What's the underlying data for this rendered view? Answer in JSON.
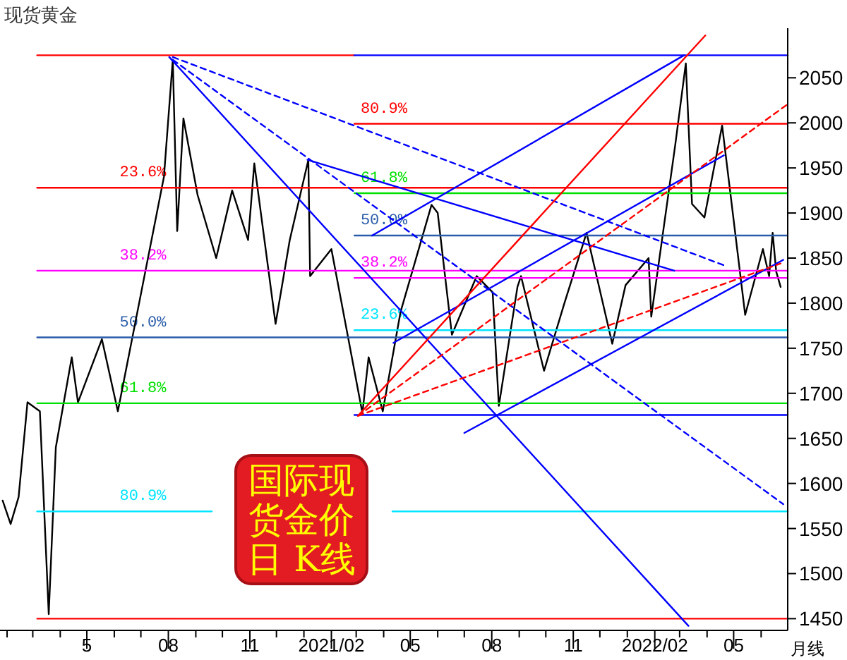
{
  "chart_data": {
    "type": "line",
    "title": "现货黄金",
    "xlim": [
      "2020-01-24",
      "2022-07-01"
    ],
    "ylim": [
      1437,
      2105
    ],
    "yticks": [
      1450,
      1500,
      1550,
      1600,
      1650,
      1700,
      1750,
      1800,
      1850,
      1900,
      1950,
      2000,
      2050
    ],
    "xticks": [
      {
        "value": "2020-02-01",
        "label": null
      },
      {
        "value": "2020-03-01",
        "label": null
      },
      {
        "value": "2020-04-01",
        "label": null
      },
      {
        "value": "2020-05-01",
        "label": "5"
      },
      {
        "value": "2020-06-01",
        "label": null
      },
      {
        "value": "2020-07-01",
        "label": null
      },
      {
        "value": "2020-08-01",
        "label": "08"
      },
      {
        "value": "2020-09-01",
        "label": null
      },
      {
        "value": "2020-10-01",
        "label": null
      },
      {
        "value": "2020-11-01",
        "label": "11"
      },
      {
        "value": "2020-12-01",
        "label": null
      },
      {
        "value": "2021-01-01",
        "label": null
      },
      {
        "value": "2021-02-01",
        "label": "2021/02"
      },
      {
        "value": "2021-03-01",
        "label": null
      },
      {
        "value": "2021-04-01",
        "label": null
      },
      {
        "value": "2021-05-01",
        "label": "05"
      },
      {
        "value": "2021-06-01",
        "label": null
      },
      {
        "value": "2021-07-01",
        "label": null
      },
      {
        "value": "2021-08-01",
        "label": "08"
      },
      {
        "value": "2021-09-01",
        "label": null
      },
      {
        "value": "2021-10-01",
        "label": null
      },
      {
        "value": "2021-11-01",
        "label": "11"
      },
      {
        "value": "2021-12-01",
        "label": null
      },
      {
        "value": "2022-01-01",
        "label": null
      },
      {
        "value": "2022-02-01",
        "label": "2022/02"
      },
      {
        "value": "2022-03-01",
        "label": null
      },
      {
        "value": "2022-04-01",
        "label": null
      },
      {
        "value": "2022-05-01",
        "label": "05"
      },
      {
        "value": "2022-06-01",
        "label": null
      }
    ],
    "series": [
      {
        "color": "#000000",
        "x": [
          "2020-01-27",
          "2020-02-05",
          "2020-02-14",
          "2020-02-24",
          "2020-03-09",
          "2020-03-19",
          "2020-03-27",
          "2020-04-14",
          "2020-04-21",
          "2020-05-18",
          "2020-06-05",
          "2020-06-24",
          "2020-07-27",
          "2020-08-06",
          "2020-08-11",
          "2020-08-18",
          "2020-09-03",
          "2020-09-24",
          "2020-10-12",
          "2020-10-30",
          "2020-11-06",
          "2020-11-30",
          "2020-12-16",
          "2021-01-06",
          "2021-01-08",
          "2021-02-01",
          "2021-03-08",
          "2021-03-15",
          "2021-03-31",
          "2021-04-20",
          "2021-05-25",
          "2021-06-01",
          "2021-06-17",
          "2021-07-15",
          "2021-08-02",
          "2021-08-09",
          "2021-08-30",
          "2021-09-03",
          "2021-09-29",
          "2021-10-22",
          "2021-11-16",
          "2021-12-15",
          "2021-12-30",
          "2022-01-25",
          "2022-01-28",
          "2022-02-24",
          "2022-03-08",
          "2022-03-15",
          "2022-03-29",
          "2022-04-18",
          "2022-05-14",
          "2022-06-03",
          "2022-06-10",
          "2022-06-14",
          "2022-06-18",
          "2022-06-23"
        ],
        "values": [
          1581,
          1555,
          1585,
          1690,
          1680,
          1455,
          1640,
          1740,
          1690,
          1760,
          1680,
          1775,
          1940,
          2070,
          1880,
          2005,
          1920,
          1850,
          1925,
          1870,
          1955,
          1777,
          1870,
          1959,
          1830,
          1860,
          1678,
          1740,
          1680,
          1790,
          1909,
          1900,
          1765,
          1830,
          1812,
          1686,
          1818,
          1830,
          1725,
          1800,
          1878,
          1755,
          1820,
          1850,
          1785,
          1975,
          2066,
          1910,
          1895,
          1997,
          1787,
          1860,
          1830,
          1878,
          1835,
          1818
        ]
      },
      {
        "color": "#ff0000",
        "x": [
          "2020-03-06",
          "2021-02-27"
        ],
        "values": [
          2075,
          2075
        ]
      },
      {
        "color": "#ff0000",
        "x": [
          "2020-03-06",
          "2022-07-01"
        ],
        "values": [
          1928,
          1928
        ]
      },
      {
        "color": "#ff00ff",
        "x": [
          "2020-03-06",
          "2022-07-01"
        ],
        "values": [
          1836,
          1836
        ]
      },
      {
        "color": "#2a5caa",
        "x": [
          "2020-03-06",
          "2022-07-01"
        ],
        "values": [
          1762,
          1762
        ]
      },
      {
        "color": "#00e000",
        "x": [
          "2020-03-06",
          "2022-07-01"
        ],
        "values": [
          1689,
          1689
        ]
      },
      {
        "color": "#00e5ff",
        "x": [
          "2020-03-06",
          "2020-09-19"
        ],
        "values": [
          1569,
          1569
        ]
      },
      {
        "color": "#00e5ff",
        "x": [
          "2021-04-11",
          "2022-07-01"
        ],
        "values": [
          1569,
          1569
        ]
      },
      {
        "color": "#ff0000",
        "x": [
          "2020-03-06",
          "2022-07-01"
        ],
        "values": [
          1450,
          1450
        ]
      },
      {
        "color": "#0000ff",
        "x": [
          "2021-02-27",
          "2022-07-01"
        ],
        "values": [
          2075,
          2075
        ]
      },
      {
        "color": "#ff0000",
        "x": [
          "2021-02-27",
          "2022-07-01"
        ],
        "values": [
          1999,
          1999
        ]
      },
      {
        "color": "#00e000",
        "x": [
          "2021-02-27",
          "2022-07-01"
        ],
        "values": [
          1922,
          1922
        ]
      },
      {
        "color": "#2a5caa",
        "x": [
          "2021-02-27",
          "2022-07-01"
        ],
        "values": [
          1875,
          1875
        ]
      },
      {
        "color": "#ff00ff",
        "x": [
          "2021-02-27",
          "2022-07-01"
        ],
        "values": [
          1828,
          1828
        ]
      },
      {
        "color": "#00e5ff",
        "x": [
          "2021-02-27",
          "2022-07-01"
        ],
        "values": [
          1770,
          1770
        ]
      },
      {
        "color": "#0000ff",
        "x": [
          "2021-02-27",
          "2022-07-01"
        ],
        "values": [
          1676,
          1676
        ]
      },
      {
        "color": "#0000ff",
        "x": [
          "2020-08-02",
          "2022-03-11"
        ],
        "values": [
          2073,
          1442
        ]
      },
      {
        "color": "#0000ff",
        "x": [
          "2021-01-05",
          "2022-02-23"
        ],
        "values": [
          1959,
          1836
        ]
      },
      {
        "color": "#0000ff",
        "x": [
          "2021-07-01",
          "2022-06-26"
        ],
        "values": [
          1656,
          1848
        ]
      },
      {
        "color": "#0000ff",
        "x": [
          "2021-03-19",
          "2022-03-06"
        ],
        "values": [
          1875,
          2075
        ]
      },
      {
        "color": "#0000ff",
        "x": [
          "2021-04-12",
          "2022-04-20"
        ],
        "values": [
          1756,
          1964
        ]
      },
      {
        "color": "#0000ff",
        "line_style": "dashed",
        "x": [
          "2020-08-06",
          "2022-04-20"
        ],
        "values": [
          2073,
          1842
        ]
      },
      {
        "color": "#0000ff",
        "line_style": "dashed",
        "x": [
          "2020-08-06",
          "2022-06-26"
        ],
        "values": [
          2070,
          1577
        ]
      },
      {
        "color": "#ff0000",
        "x": [
          "2021-03-03",
          "2022-03-30"
        ],
        "values": [
          1675,
          2097
        ]
      },
      {
        "color": "#ff0000",
        "line_style": "dashed",
        "x": [
          "2021-03-03",
          "2022-06-30"
        ],
        "values": [
          1675,
          2020
        ]
      },
      {
        "color": "#ff0000",
        "line_style": "dashed",
        "x": [
          "2021-03-03",
          "2022-06-23"
        ],
        "values": [
          1675,
          1844
        ]
      }
    ],
    "annotations": [
      {
        "text": "23.6%",
        "x": "2020-06-07",
        "y": 1928
      },
      {
        "text": "38.2%",
        "x": "2020-06-07",
        "y": 1836
      },
      {
        "text": "50.0%",
        "x": "2020-06-07",
        "y": 1762
      },
      {
        "text": "61.8%",
        "x": "2020-06-07",
        "y": 1689
      },
      {
        "text": "80.9%",
        "x": "2020-06-07",
        "y": 1569
      },
      {
        "text": "80.9%",
        "x": "2021-03-06",
        "y": 1999
      },
      {
        "text": "61.8%",
        "x": "2021-03-06",
        "y": 1922
      },
      {
        "text": "50.0%",
        "x": "2021-03-06",
        "y": 1875
      },
      {
        "text": "38.2%",
        "x": "2021-03-06",
        "y": 1828
      },
      {
        "text": "23.6%",
        "x": "2021-03-06",
        "y": 1770
      },
      "国际现货金价日 K线",
      "月线"
    ]
  }
}
